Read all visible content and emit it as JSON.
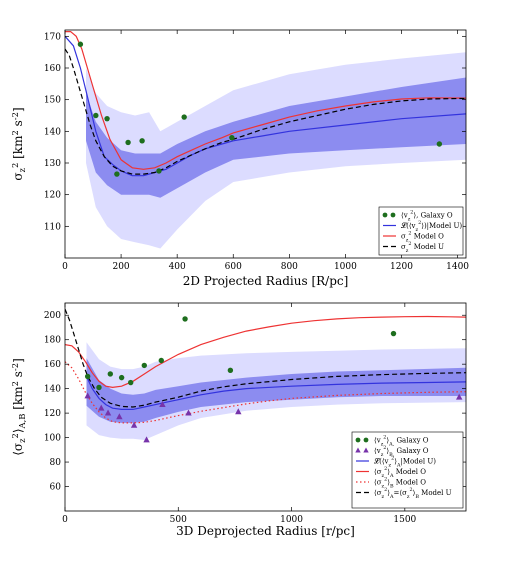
{
  "chart_data": [
    {
      "type": "line",
      "xlabel": "2D Projected Radius [R/pc]",
      "ylabel": "σ_z^2 [km^2 s^-2]",
      "xlim": [
        0,
        1430
      ],
      "ylim": [
        100,
        172
      ],
      "xticks": [
        0,
        200,
        400,
        600,
        800,
        1000,
        1200,
        1400
      ],
      "yticks": [
        110,
        120,
        130,
        140,
        150,
        160,
        170
      ],
      "legend_position": "lower-right",
      "bands": [
        {
          "name": "outer band",
          "color": "#dcdcff",
          "x": [
            75,
            110,
            150,
            200,
            250,
            300,
            340,
            400,
            500,
            600,
            800,
            1000,
            1200,
            1430
          ],
          "lower": [
            130,
            116,
            110,
            106,
            105,
            104,
            103,
            109,
            118,
            124,
            127,
            129,
            130,
            131
          ],
          "upper": [
            160,
            152,
            148,
            146,
            145,
            146,
            140,
            143,
            148,
            153,
            158,
            161,
            163,
            165
          ]
        },
        {
          "name": "inner band",
          "color": "#8c8cf0",
          "x": [
            75,
            110,
            150,
            200,
            250,
            300,
            340,
            400,
            500,
            600,
            800,
            1000,
            1200,
            1430
          ],
          "lower": [
            137,
            127,
            123,
            120,
            120,
            120,
            119,
            122,
            127,
            131,
            133,
            134,
            135,
            136
          ],
          "upper": [
            152,
            143,
            138,
            134,
            133,
            133,
            133,
            136,
            140,
            143,
            148,
            151,
            154,
            157
          ]
        }
      ],
      "series": [
        {
          "name": "⟨v_z^2⟩, Galaxy O",
          "kind": "scatter",
          "marker": "circle",
          "color": "#1e6e1e",
          "x": [
            55,
            110,
            150,
            185,
            225,
            275,
            335,
            425,
            595,
            1335
          ],
          "y": [
            167.5,
            145,
            144,
            126.5,
            136.5,
            137,
            127.5,
            144.5,
            138,
            136
          ]
        },
        {
          "name": "𝓛(⟨v_z^2⟩)|Model U)",
          "kind": "line",
          "color": "#3333dd",
          "dash": "",
          "x": [
            0,
            30,
            55,
            80,
            110,
            140,
            170,
            200,
            240,
            280,
            320,
            360,
            400,
            450,
            500,
            560,
            600,
            700,
            800,
            1000,
            1200,
            1430
          ],
          "y": [
            170,
            167,
            160,
            151,
            140,
            132,
            129.5,
            127.5,
            126,
            126,
            127,
            128,
            130,
            132.5,
            134.5,
            136,
            137,
            138.5,
            140,
            142,
            144,
            145.5
          ]
        },
        {
          "name": "σ_z^2 Model O",
          "kind": "line",
          "color": "#ee3333",
          "dash": "",
          "x": [
            0,
            20,
            40,
            60,
            80,
            100,
            130,
            160,
            200,
            240,
            280,
            320,
            360,
            400,
            450,
            500,
            560,
            600,
            700,
            800,
            900,
            1000,
            1100,
            1200,
            1300,
            1430
          ],
          "y": [
            171.5,
            171.5,
            170,
            166,
            160,
            154,
            145,
            137.5,
            131,
            128.5,
            128,
            128.5,
            130,
            132,
            134,
            136,
            138,
            139.5,
            142,
            144.5,
            146.5,
            148,
            149.3,
            150.2,
            150.6,
            150.5
          ]
        },
        {
          "name": "σ_z^2 Model U",
          "kind": "line",
          "color": "#000000",
          "dash": "5,3",
          "x": [
            0,
            15,
            30,
            50,
            70,
            90,
            110,
            140,
            170,
            200,
            240,
            280,
            320,
            360,
            400,
            450,
            500,
            560,
            600,
            700,
            800,
            900,
            1000,
            1100,
            1200,
            1300,
            1430
          ],
          "y": [
            166,
            164,
            160,
            154,
            148,
            142,
            137,
            132,
            129,
            127.5,
            126.5,
            126.5,
            127,
            128.5,
            130.5,
            132.5,
            134.5,
            136.5,
            137.5,
            140.5,
            143,
            145,
            147,
            148.5,
            149.6,
            150.2,
            150.4
          ]
        }
      ]
    },
    {
      "type": "line",
      "xlabel": "3D Deprojected Radius [r/pc]",
      "ylabel": "⟨σ_z^2⟩_A,B [km^2 s^-2]",
      "xlim": [
        0,
        1770
      ],
      "ylim": [
        40,
        210
      ],
      "xticks": [
        0,
        500,
        1000,
        1500
      ],
      "yticks": [
        60,
        80,
        100,
        120,
        140,
        160,
        180,
        200
      ],
      "legend_position": "lower-right",
      "bands": [
        {
          "name": "outer band",
          "color": "#dcdcff",
          "x": [
            95,
            150,
            200,
            250,
            300,
            350,
            400,
            500,
            600,
            800,
            1000,
            1200,
            1400,
            1770
          ],
          "lower": [
            110,
            102,
            100,
            99,
            99,
            98,
            102,
            110,
            116,
            122,
            125,
            127,
            128,
            129
          ],
          "upper": [
            178,
            164,
            158,
            156,
            156,
            158,
            162,
            165,
            167,
            169,
            170,
            171,
            172,
            173
          ]
        },
        {
          "name": "inner band",
          "color": "#8c8cf0",
          "x": [
            95,
            150,
            200,
            250,
            300,
            350,
            400,
            500,
            600,
            800,
            1000,
            1200,
            1400,
            1770
          ],
          "lower": [
            126,
            117,
            113,
            112,
            112,
            113,
            116,
            121,
            125,
            129,
            131,
            133,
            134,
            134
          ],
          "upper": [
            165,
            147,
            140,
            136,
            135,
            136,
            139,
            142,
            145,
            149,
            152,
            154,
            155,
            157
          ]
        }
      ],
      "series": [
        {
          "name": "⟨v_z^2⟩_A, Galaxy O",
          "kind": "scatter",
          "marker": "circle",
          "color": "#1e6e1e",
          "x": [
            100,
            150,
            200,
            250,
            290,
            350,
            425,
            530,
            730,
            1450
          ],
          "y": [
            150,
            141,
            152,
            149,
            145,
            159,
            163,
            197,
            155,
            185
          ]
        },
        {
          "name": "⟨v_z^2⟩_B, Galaxy O",
          "kind": "scatter",
          "marker": "triangle",
          "color": "#7733aa",
          "x": [
            100,
            160,
            190,
            240,
            305,
            360,
            430,
            545,
            765,
            1740
          ],
          "y": [
            134,
            124,
            120,
            117,
            110,
            98,
            127,
            120,
            121,
            133
          ]
        },
        {
          "name": "𝓛(⟨v_z^2⟩_A|Model U)",
          "kind": "line",
          "color": "#3333dd",
          "dash": "",
          "x": [
            95,
            120,
            150,
            180,
            210,
            250,
            300,
            350,
            400,
            450,
            500,
            600,
            700,
            800,
            1000,
            1200,
            1400,
            1600,
            1770
          ],
          "y": [
            150,
            140,
            132,
            127,
            124,
            123,
            123,
            125,
            127,
            129,
            131,
            135,
            138,
            140,
            142,
            143.5,
            144.5,
            145,
            145.5
          ]
        },
        {
          "name": "⟨σ_z^2⟩_A Model O",
          "kind": "line",
          "color": "#ee3333",
          "dash": "",
          "x": [
            0,
            30,
            60,
            90,
            120,
            150,
            180,
            210,
            250,
            300,
            350,
            400,
            450,
            500,
            600,
            700,
            800,
            900,
            1000,
            1100,
            1200,
            1300,
            1400,
            1500,
            1600,
            1700,
            1770
          ],
          "y": [
            176,
            175,
            170,
            162,
            153,
            146,
            142,
            141,
            142,
            146,
            152,
            158,
            163,
            168,
            176,
            182,
            187,
            190.5,
            193.5,
            195.5,
            197,
            198,
            198.5,
            198.8,
            199,
            198.7,
            198.5
          ]
        },
        {
          "name": "⟨σ_z^2⟩_B Model O",
          "kind": "line",
          "color": "#ee3333",
          "dash": "1.5,2.5",
          "x": [
            0,
            30,
            60,
            90,
            120,
            150,
            180,
            210,
            250,
            300,
            350,
            400,
            450,
            500,
            600,
            700,
            800,
            900,
            1000,
            1200,
            1400,
            1600,
            1770
          ],
          "y": [
            162,
            157,
            148,
            137,
            128,
            121,
            116,
            113,
            112,
            112,
            112.5,
            114,
            116,
            118,
            121.5,
            124.5,
            127.5,
            130,
            132,
            134.5,
            136,
            137,
            137.5
          ]
        },
        {
          "name": "⟨σ_z^2⟩_A=⟨σ_z^2⟩_B Model U",
          "kind": "line",
          "color": "#000000",
          "dash": "5,3",
          "x": [
            0,
            20,
            40,
            60,
            80,
            100,
            130,
            160,
            200,
            250,
            300,
            350,
            400,
            450,
            500,
            600,
            700,
            800,
            1000,
            1200,
            1400,
            1600,
            1770
          ],
          "y": [
            205,
            196,
            184,
            172,
            160,
            150,
            140,
            133,
            128,
            125.5,
            125,
            126.5,
            129,
            131,
            133,
            138,
            141.5,
            144,
            147.5,
            150,
            151.5,
            152.5,
            153
          ]
        }
      ]
    }
  ]
}
